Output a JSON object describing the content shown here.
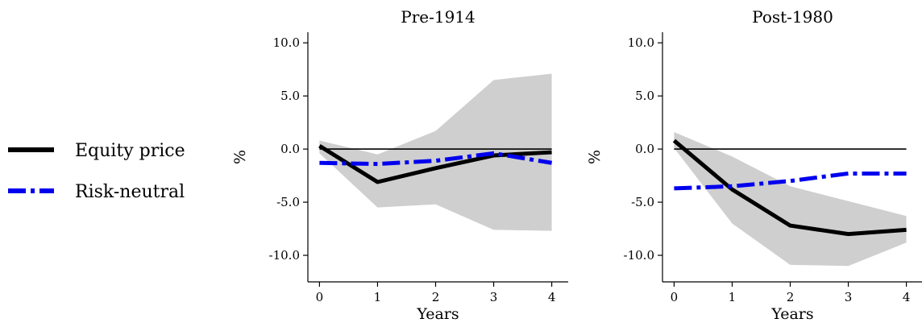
{
  "legend": [
    {
      "label": "Equity price",
      "color": "#000000",
      "style": "solid"
    },
    {
      "label": "Risk-neutral",
      "color": "#0000ee",
      "style": "dashdot"
    }
  ],
  "chart_data": [
    {
      "type": "line",
      "title": "Pre-1914",
      "xlabel": "Years",
      "ylabel": "%",
      "x": [
        0,
        1,
        2,
        3,
        4
      ],
      "xticks": [
        "0",
        "1",
        "2",
        "3",
        "4"
      ],
      "yticks": [
        "10.0",
        "5.0",
        "0.0",
        "-5.0",
        "-10.0"
      ],
      "ytick_values": [
        10,
        5,
        0,
        -5,
        -10
      ],
      "ylim": [
        -12.5,
        11
      ],
      "xlim": [
        -0.2,
        4.2
      ],
      "series": [
        {
          "name": "Equity price",
          "values": [
            0.3,
            -3.1,
            -1.8,
            -0.6,
            -0.3
          ],
          "color": "#000000"
        },
        {
          "name": "Risk-neutral",
          "values": [
            -1.3,
            -1.4,
            -1.1,
            -0.4,
            -1.3
          ],
          "color": "#0000ee"
        }
      ],
      "band": {
        "upper": [
          0.8,
          -0.5,
          1.7,
          6.5,
          7.1
        ],
        "lower": [
          -0.4,
          -5.5,
          -5.2,
          -7.6,
          -7.7
        ]
      }
    },
    {
      "type": "line",
      "title": "Post-1980",
      "xlabel": "Years",
      "ylabel": "%",
      "x": [
        0,
        1,
        2,
        3,
        4
      ],
      "xticks": [
        "0",
        "1",
        "2",
        "3",
        "4"
      ],
      "yticks": [
        "10.0",
        "5.0",
        "0.0",
        "-5.0",
        "-10.0"
      ],
      "ytick_values": [
        10,
        5,
        0,
        -5,
        -10
      ],
      "ylim": [
        -12.5,
        11
      ],
      "xlim": [
        -0.2,
        4.2
      ],
      "series": [
        {
          "name": "Equity price",
          "values": [
            0.8,
            -3.8,
            -7.2,
            -8.0,
            -7.6
          ],
          "color": "#000000"
        },
        {
          "name": "Risk-neutral",
          "values": [
            -3.7,
            -3.5,
            -3.0,
            -2.3,
            -2.3
          ],
          "color": "#0000ee"
        }
      ],
      "band": {
        "upper": [
          1.6,
          -0.7,
          -3.5,
          -4.9,
          -6.3
        ],
        "lower": [
          0.1,
          -7.0,
          -10.9,
          -11.0,
          -8.8
        ]
      }
    }
  ]
}
